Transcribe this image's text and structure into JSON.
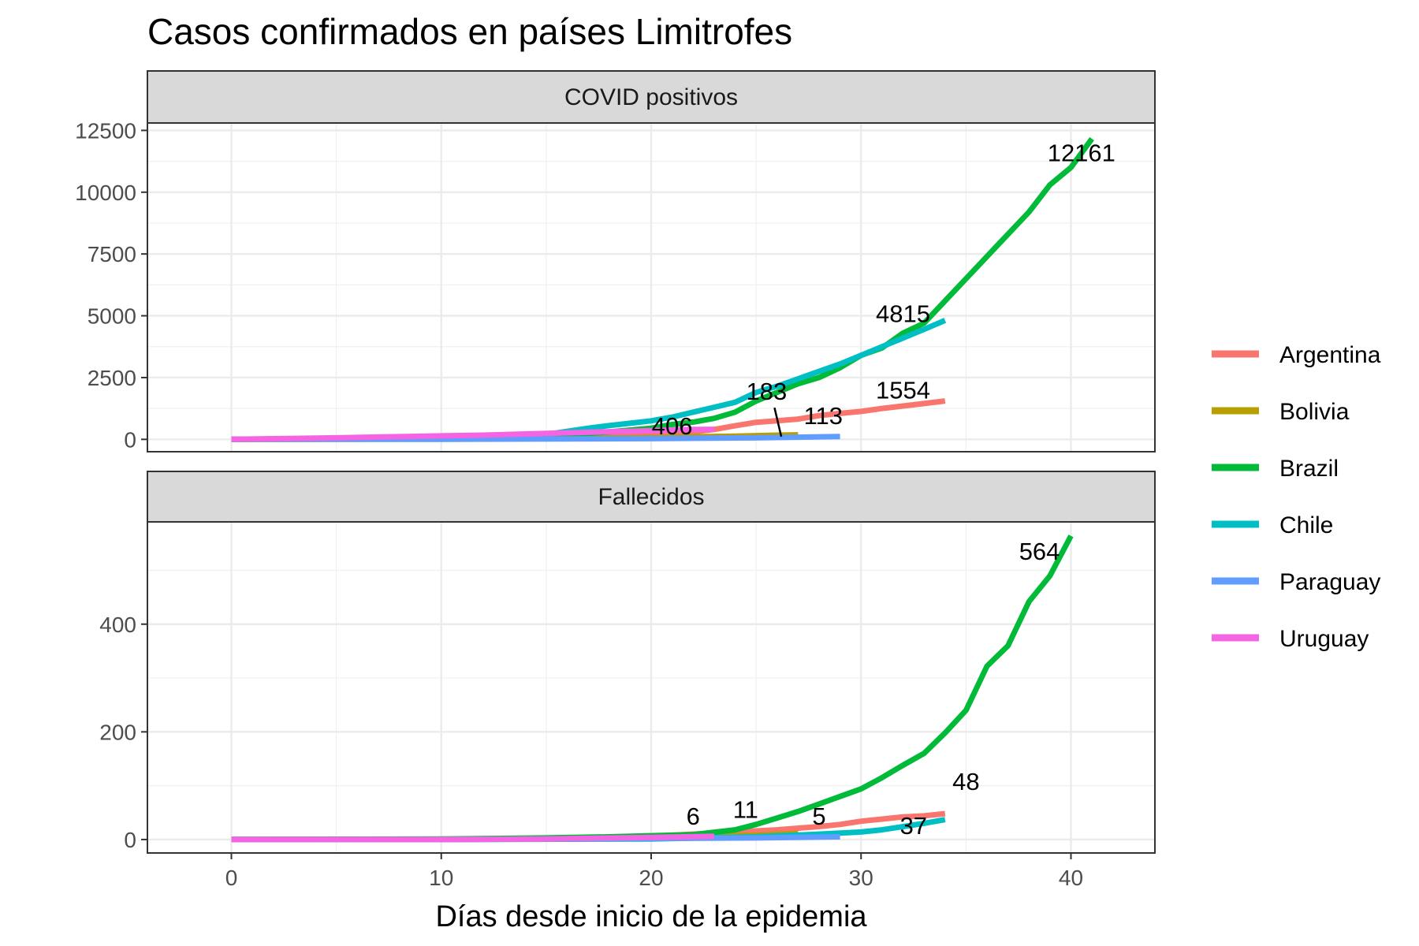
{
  "chart_data": {
    "type": "line",
    "title": "Casos confirmados en países Limitrofes",
    "xlabel": "Días desde inicio de la epidemia",
    "xlim": [
      -4,
      44
    ],
    "x_ticks": [
      0,
      10,
      20,
      30,
      40
    ],
    "grid": true,
    "legend_position": "right",
    "legend": [
      "Argentina",
      "Bolivia",
      "Brazil",
      "Chile",
      "Paraguay",
      "Uruguay"
    ],
    "colors": {
      "Argentina": "#F8766D",
      "Bolivia": "#B79F00",
      "Brazil": "#00BA38",
      "Chile": "#00BFC4",
      "Paraguay": "#619CFF",
      "Uruguay": "#F564E3"
    },
    "panels": [
      {
        "strip": "COVID positivos",
        "ylim": [
          -500,
          12800
        ],
        "y_ticks": [
          0,
          2500,
          5000,
          7500,
          10000,
          12500
        ],
        "series": [
          {
            "name": "Argentina",
            "points": [
              [
                0,
                1
              ],
              [
                5,
                10
              ],
              [
                10,
                20
              ],
              [
                15,
                30
              ],
              [
                18,
                100
              ],
              [
                20,
                160
              ],
              [
                22,
                300
              ],
              [
                23,
                400
              ],
              [
                24,
                550
              ],
              [
                25,
                690
              ],
              [
                26,
                750
              ],
              [
                27,
                820
              ],
              [
                28,
                960
              ],
              [
                29,
                1050
              ],
              [
                30,
                1130
              ],
              [
                31,
                1250
              ],
              [
                32,
                1350
              ],
              [
                33,
                1450
              ],
              [
                34,
                1554
              ]
            ]
          },
          {
            "name": "Bolivia",
            "points": [
              [
                0,
                1
              ],
              [
                10,
                10
              ],
              [
                15,
                30
              ],
              [
                20,
                75
              ],
              [
                22,
                107
              ],
              [
                24,
                130
              ],
              [
                26,
                170
              ],
              [
                27,
                183
              ]
            ]
          },
          {
            "name": "Brazil",
            "points": [
              [
                0,
                1
              ],
              [
                10,
                50
              ],
              [
                15,
                120
              ],
              [
                18,
                300
              ],
              [
                20,
                450
              ],
              [
                21,
                600
              ],
              [
                22,
                700
              ],
              [
                23,
                850
              ],
              [
                24,
                1100
              ],
              [
                25,
                1550
              ],
              [
                26,
                1900
              ],
              [
                27,
                2250
              ],
              [
                28,
                2500
              ],
              [
                29,
                2900
              ],
              [
                30,
                3400
              ],
              [
                31,
                3700
              ],
              [
                32,
                4300
              ],
              [
                33,
                4700
              ],
              [
                34,
                5600
              ],
              [
                35,
                6500
              ],
              [
                36,
                7400
              ],
              [
                37,
                8300
              ],
              [
                38,
                9200
              ],
              [
                39,
                10300
              ],
              [
                40,
                11000
              ],
              [
                41,
                12161
              ]
            ]
          },
          {
            "name": "Chile",
            "points": [
              [
                0,
                1
              ],
              [
                10,
                50
              ],
              [
                15,
                200
              ],
              [
                17,
                450
              ],
              [
                18,
                560
              ],
              [
                19,
                650
              ],
              [
                20,
                750
              ],
              [
                21,
                900
              ],
              [
                22,
                1100
              ],
              [
                23,
                1300
              ],
              [
                24,
                1500
              ],
              [
                25,
                1900
              ],
              [
                26,
                2150
              ],
              [
                27,
                2450
              ],
              [
                28,
                2750
              ],
              [
                29,
                3050
              ],
              [
                30,
                3400
              ],
              [
                31,
                3750
              ],
              [
                32,
                4100
              ],
              [
                33,
                4450
              ],
              [
                34,
                4815
              ]
            ]
          },
          {
            "name": "Paraguay",
            "points": [
              [
                0,
                1
              ],
              [
                10,
                5
              ],
              [
                20,
                30
              ],
              [
                25,
                60
              ],
              [
                29,
                113
              ]
            ]
          },
          {
            "name": "Uruguay",
            "points": [
              [
                0,
                4
              ],
              [
                5,
                60
              ],
              [
                8,
                110
              ],
              [
                10,
                140
              ],
              [
                12,
                170
              ],
              [
                15,
                240
              ],
              [
                18,
                310
              ],
              [
                20,
                350
              ],
              [
                21,
                380
              ],
              [
                22,
                400
              ],
              [
                23,
                406
              ]
            ]
          }
        ],
        "labels": [
          {
            "text": "12161",
            "series": "Brazil",
            "x": 40.5,
            "y": 11250
          },
          {
            "text": "4815",
            "series": "Chile",
            "x": 32.0,
            "y": 4750
          },
          {
            "text": "1554",
            "series": "Argentina",
            "x": 32.0,
            "y": 1650
          },
          {
            "text": "183",
            "series": "Bolivia",
            "x": 25.5,
            "y": 1600,
            "leader_to": [
              26.2,
              110
            ]
          },
          {
            "text": "113",
            "series": "Paraguay",
            "x": 28.2,
            "y": 620
          },
          {
            "text": "406",
            "series": "Uruguay",
            "x": 21.0,
            "y": 200
          }
        ]
      },
      {
        "strip": "Fallecidos",
        "ylim": [
          -25,
          590
        ],
        "y_ticks": [
          0,
          200,
          400
        ],
        "series": [
          {
            "name": "Argentina",
            "points": [
              [
                0,
                0
              ],
              [
                10,
                0
              ],
              [
                15,
                2
              ],
              [
                20,
                6
              ],
              [
                22,
                10
              ],
              [
                24,
                14
              ],
              [
                26,
                18
              ],
              [
                28,
                24
              ],
              [
                29,
                28
              ],
              [
                30,
                34
              ],
              [
                31,
                38
              ],
              [
                32,
                42
              ],
              [
                33,
                44
              ],
              [
                34,
                48
              ]
            ]
          },
          {
            "name": "Bolivia",
            "points": [
              [
                0,
                0
              ],
              [
                10,
                0
              ],
              [
                18,
                2
              ],
              [
                22,
                6
              ],
              [
                25,
                8
              ],
              [
                27,
                11
              ]
            ]
          },
          {
            "name": "Brazil",
            "points": [
              [
                0,
                0
              ],
              [
                10,
                1
              ],
              [
                15,
                3
              ],
              [
                18,
                5
              ],
              [
                20,
                7
              ],
              [
                22,
                9
              ],
              [
                24,
                18
              ],
              [
                25,
                28
              ],
              [
                26,
                40
              ],
              [
                27,
                52
              ],
              [
                28,
                66
              ],
              [
                29,
                80
              ],
              [
                30,
                94
              ],
              [
                31,
                115
              ],
              [
                32,
                138
              ],
              [
                33,
                160
              ],
              [
                34,
                198
              ],
              [
                35,
                240
              ],
              [
                36,
                322
              ],
              [
                37,
                360
              ],
              [
                38,
                442
              ],
              [
                39,
                490
              ],
              [
                40,
                564
              ]
            ]
          },
          {
            "name": "Chile",
            "points": [
              [
                0,
                0
              ],
              [
                10,
                0
              ],
              [
                20,
                1
              ],
              [
                25,
                5
              ],
              [
                28,
                10
              ],
              [
                29,
                12
              ],
              [
                30,
                14
              ],
              [
                31,
                18
              ],
              [
                32,
                24
              ],
              [
                33,
                30
              ],
              [
                34,
                37
              ]
            ]
          },
          {
            "name": "Paraguay",
            "points": [
              [
                0,
                0
              ],
              [
                10,
                0
              ],
              [
                20,
                2
              ],
              [
                25,
                3
              ],
              [
                29,
                5
              ]
            ]
          },
          {
            "name": "Uruguay",
            "points": [
              [
                0,
                0
              ],
              [
                10,
                0
              ],
              [
                15,
                1
              ],
              [
                20,
                4
              ],
              [
                23,
                6
              ]
            ]
          }
        ],
        "labels": [
          {
            "text": "564",
            "series": "Brazil",
            "x": 38.5,
            "y": 520
          },
          {
            "text": "48",
            "series": "Argentina",
            "x": 35.0,
            "y": 92
          },
          {
            "text": "37",
            "series": "Chile",
            "x": 32.5,
            "y": 10
          },
          {
            "text": "11",
            "series": "Bolivia",
            "x": 24.5,
            "y": 40
          },
          {
            "text": "6",
            "series": "Uruguay",
            "x": 22.0,
            "y": 28
          },
          {
            "text": "5",
            "series": "Paraguay",
            "x": 28.0,
            "y": 28
          }
        ]
      }
    ]
  }
}
